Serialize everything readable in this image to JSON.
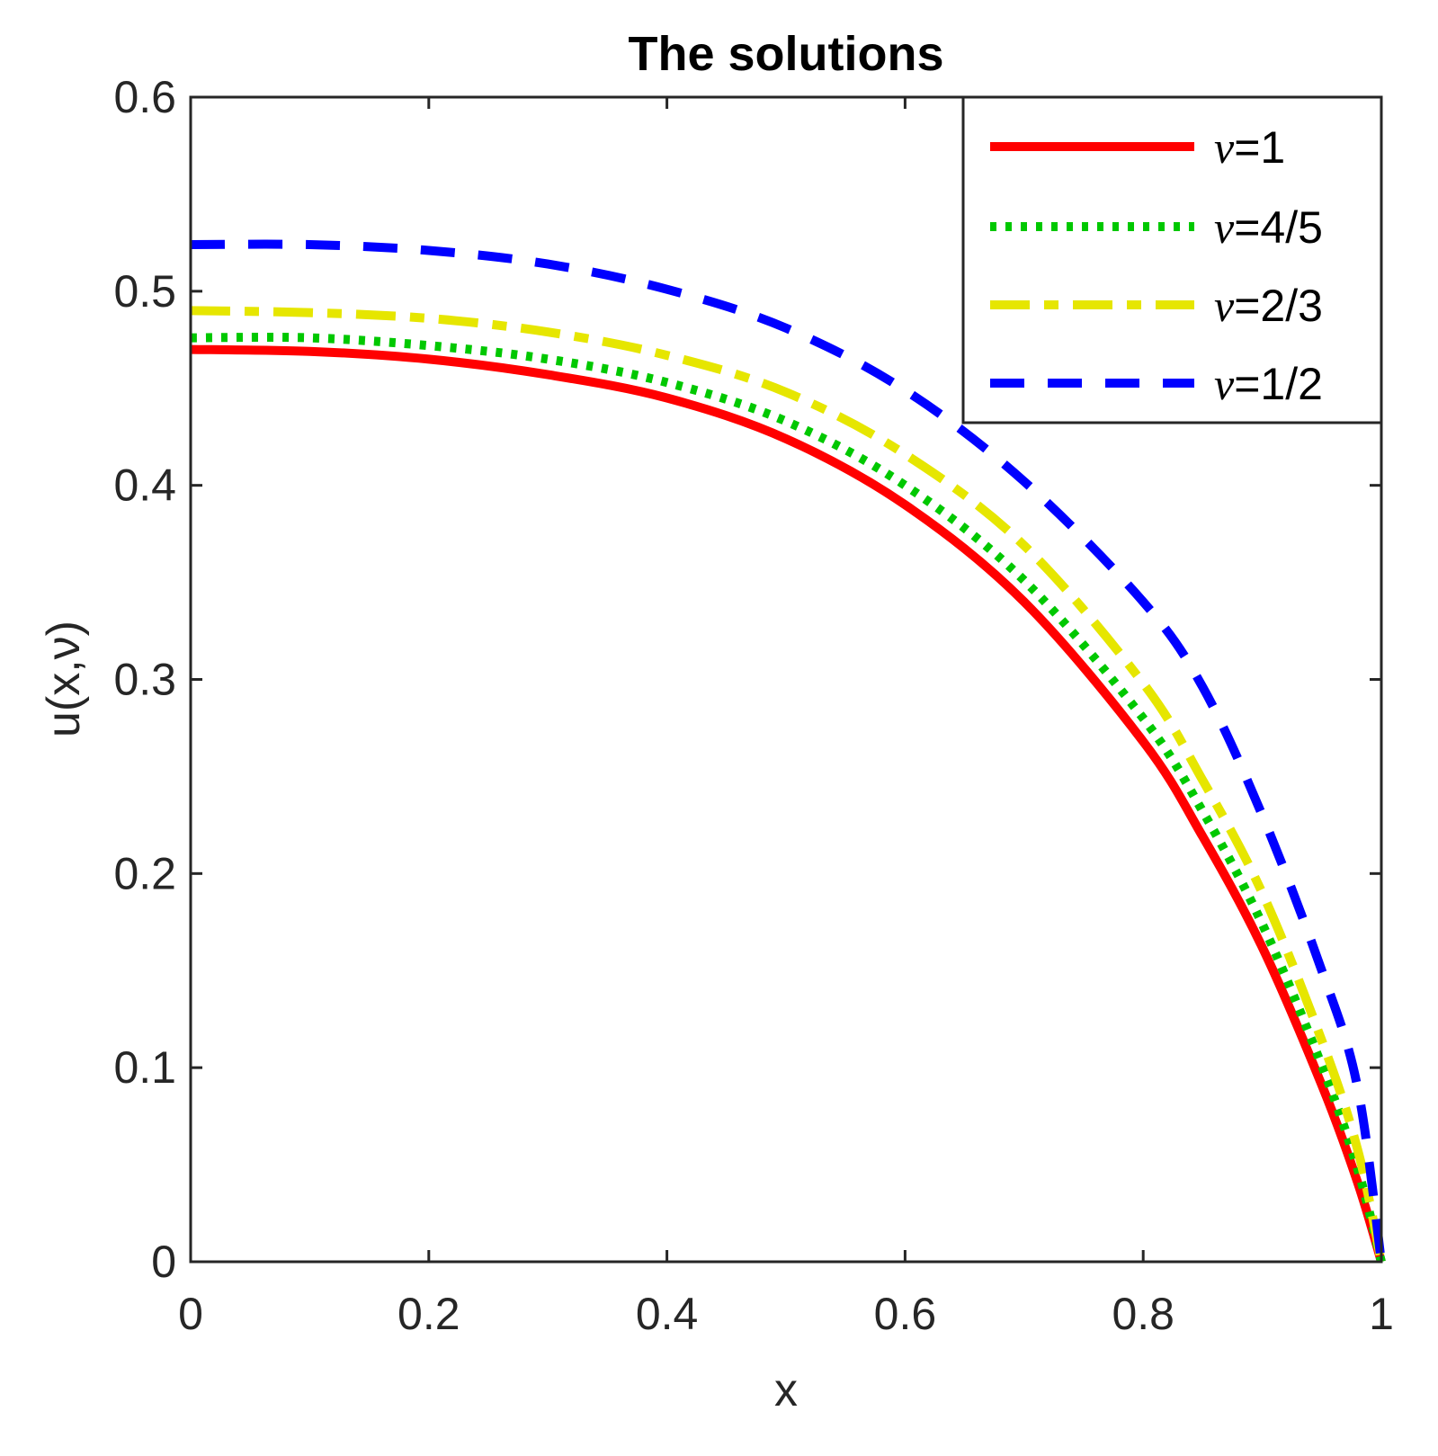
{
  "chart_data": {
    "type": "line",
    "title": "The solutions",
    "xlabel": "x",
    "ylabel": "u(x,ν)",
    "xlim": [
      0,
      1
    ],
    "ylim": [
      0,
      0.6
    ],
    "xticks": [
      "0",
      "0.2",
      "0.4",
      "0.6",
      "0.8",
      "1"
    ],
    "yticks": [
      "0",
      "0.1",
      "0.2",
      "0.3",
      "0.4",
      "0.5",
      "0.6"
    ],
    "grid": false,
    "legend_position": "top-right",
    "x": [
      0,
      0.1,
      0.2,
      0.3,
      0.4,
      0.5,
      0.6,
      0.7,
      0.8,
      0.85,
      0.9,
      0.95,
      0.98,
      1.0
    ],
    "series": [
      {
        "name": "ν=1",
        "legend_prefix": "ν",
        "legend_suffix": "=1",
        "color": "#ff0000",
        "style": "solid",
        "values": [
          0.47,
          0.469,
          0.465,
          0.457,
          0.445,
          0.424,
          0.39,
          0.34,
          0.268,
          0.219,
          0.162,
          0.091,
          0.041,
          0.0
        ]
      },
      {
        "name": "ν=4/5",
        "legend_prefix": "ν",
        "legend_suffix": "=4/5",
        "color": "#00c800",
        "style": "dotted",
        "values": [
          0.476,
          0.476,
          0.472,
          0.465,
          0.453,
          0.433,
          0.4,
          0.351,
          0.28,
          0.232,
          0.174,
          0.101,
          0.048,
          0.0
        ]
      },
      {
        "name": "ν=2/3",
        "legend_prefix": "ν",
        "legend_suffix": "=2/3",
        "color": "#e6e600",
        "style": "dashdot",
        "values": [
          0.49,
          0.489,
          0.486,
          0.479,
          0.467,
          0.448,
          0.416,
          0.369,
          0.298,
          0.248,
          0.19,
          0.114,
          0.058,
          0.0
        ]
      },
      {
        "name": "ν=1/2",
        "legend_prefix": "ν",
        "legend_suffix": "=1/2",
        "color": "#0000ff",
        "style": "dashed",
        "values": [
          0.524,
          0.524,
          0.521,
          0.514,
          0.501,
          0.481,
          0.449,
          0.402,
          0.34,
          0.296,
          0.23,
          0.15,
          0.09,
          0.0
        ]
      }
    ]
  }
}
